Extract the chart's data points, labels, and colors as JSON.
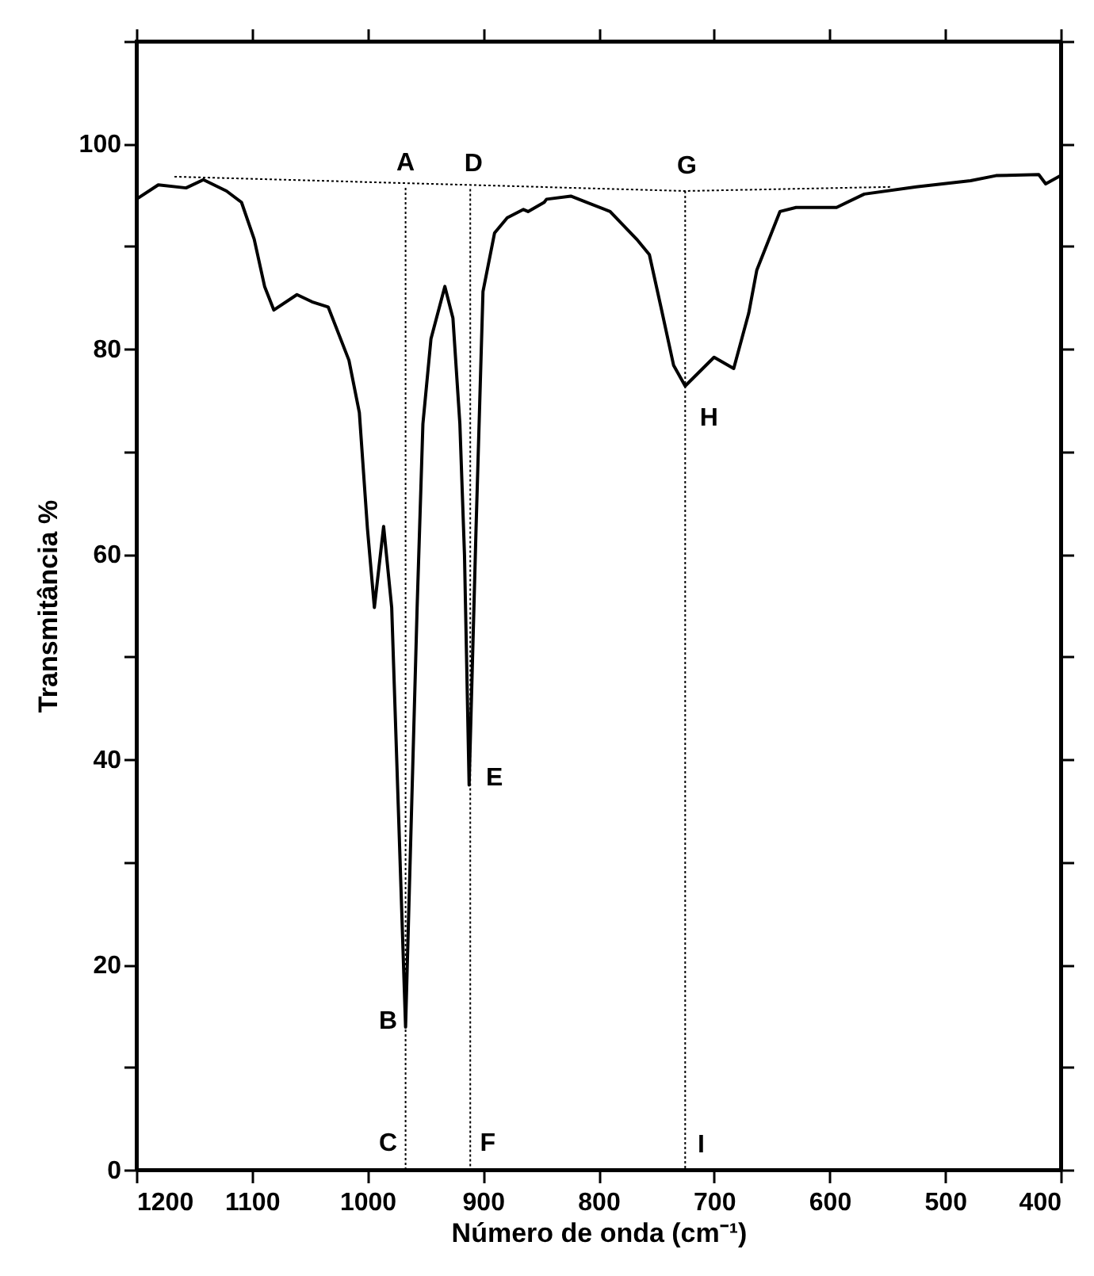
{
  "chart_data": {
    "type": "line",
    "xlabel": "Número de onda (cm⁻¹)",
    "ylabel": "Transmitância %",
    "xlim": [
      1200,
      400
    ],
    "ylim": [
      0,
      110
    ],
    "xticks": [
      1200,
      1100,
      1000,
      900,
      800,
      700,
      600,
      500,
      400
    ],
    "yticks": [
      0,
      {
        "value": 10,
        "label": null
      },
      20,
      {
        "value": 30,
        "label": null
      },
      40,
      {
        "value": 50,
        "label": null
      },
      60,
      {
        "value": 70,
        "label": null
      },
      80,
      {
        "value": 90,
        "label": null
      },
      100,
      {
        "value": 110,
        "label": null
      }
    ],
    "grid": false,
    "marker": "none",
    "series": [
      {
        "color": "#000000",
        "line_style": "solid",
        "x": [
          1200,
          1181,
          1157,
          1142,
          1122,
          1109,
          1098,
          1089,
          1081,
          1061,
          1048,
          1034,
          1016,
          1007,
          1000,
          994,
          986,
          979,
          967,
          957,
          952,
          945,
          933,
          926,
          920,
          916,
          912,
          906,
          900,
          890,
          879,
          865,
          861,
          847,
          845,
          824,
          790,
          767,
          756,
          746,
          735,
          725,
          700,
          683,
          670,
          663,
          643,
          629,
          594,
          570,
          525,
          478,
          456,
          419,
          413,
          400
        ],
        "values": [
          94.6,
          96.0,
          95.7,
          96.5,
          95.4,
          94.3,
          90.7,
          86.1,
          83.8,
          85.3,
          84.6,
          84.1,
          78.9,
          73.8,
          62.5,
          54.8,
          62.7,
          54.8,
          13.9,
          54.8,
          72.7,
          81.0,
          86.1,
          83.0,
          72.7,
          59.9,
          37.5,
          62.5,
          85.6,
          91.3,
          92.8,
          93.6,
          93.4,
          94.3,
          94.6,
          94.9,
          93.4,
          90.7,
          89.2,
          84.1,
          78.4,
          76.4,
          79.2,
          78.1,
          83.5,
          87.7,
          93.4,
          93.8,
          93.8,
          95.1,
          95.8,
          96.4,
          96.9,
          97.0,
          96.1,
          96.9
        ]
      },
      {
        "color": "#000000",
        "line_style": "dotted",
        "x": [
          1167,
          725,
          547
        ],
        "values": [
          96.8,
          95.4,
          95.8
        ]
      },
      {
        "color": "#000000",
        "line_style": "dotted",
        "x": [
          967,
          967
        ],
        "values": [
          95.7,
          0
        ]
      },
      {
        "color": "#000000",
        "line_style": "dotted",
        "x": [
          911,
          911
        ],
        "values": [
          95.6,
          0
        ]
      },
      {
        "color": "#000000",
        "line_style": "dotted",
        "x": [
          725,
          725
        ],
        "values": [
          95.4,
          0
        ]
      }
    ],
    "annotations": [
      {
        "text": "A",
        "x": 967,
        "y": 95.7
      },
      {
        "text": "B",
        "x": 967,
        "y": 13.9
      },
      {
        "text": "C",
        "x": 967,
        "y": 0
      },
      {
        "text": "D",
        "x": 911,
        "y": 95.6
      },
      {
        "text": "E",
        "x": 912,
        "y": 37.5
      },
      {
        "text": "F",
        "x": 911,
        "y": 0
      },
      {
        "text": "G",
        "x": 725,
        "y": 95.4
      },
      {
        "text": "H",
        "x": 725,
        "y": 76.4
      },
      {
        "text": "I",
        "x": 725,
        "y": 0
      }
    ]
  }
}
